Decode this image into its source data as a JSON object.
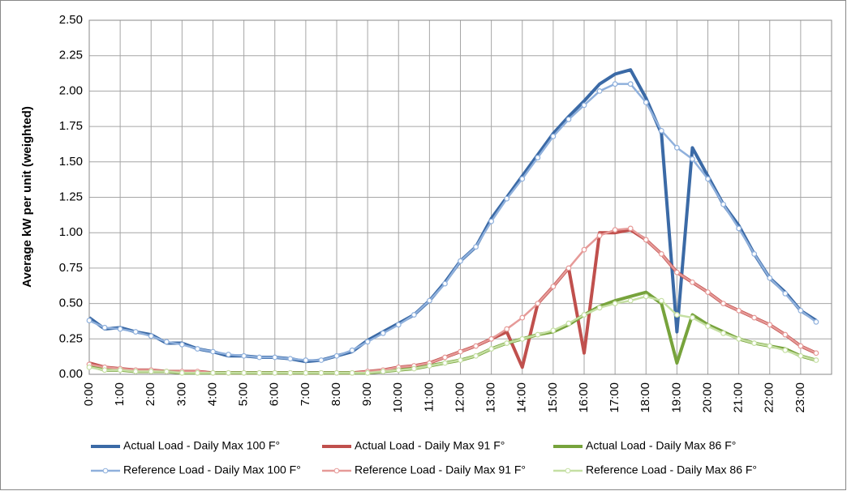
{
  "chart_data": {
    "type": "line",
    "y_label": "Average kW per unit (weighted)",
    "categories": [
      "0:00",
      null,
      "1:00",
      null,
      "2:00",
      null,
      "3:00",
      null,
      "4:00",
      null,
      "5:00",
      null,
      "6:00",
      null,
      "7:00",
      null,
      "8:00",
      null,
      "9:00",
      null,
      "10:00",
      null,
      "11:00",
      null,
      "12:00",
      null,
      "13:00",
      null,
      "14:00",
      null,
      "15:00",
      null,
      "16:00",
      null,
      "17:00",
      null,
      "18:00",
      null,
      "19:00",
      null,
      "20:00",
      null,
      "21:00",
      null,
      "22:00",
      null,
      "23:00",
      null
    ],
    "ylim": [
      0,
      2.5
    ],
    "yticks": [
      {
        "value": 0,
        "label": "0.00"
      },
      {
        "value": 0.25,
        "label": "0.25"
      },
      {
        "value": 0.5,
        "label": "0.50"
      },
      {
        "value": 0.75,
        "label": "0.75"
      },
      {
        "value": 1,
        "label": "1.00"
      },
      {
        "value": 1.25,
        "label": "1.25"
      },
      {
        "value": 1.5,
        "label": "1.50"
      },
      {
        "value": 1.75,
        "label": "1.75"
      },
      {
        "value": 2,
        "label": "2.00"
      },
      {
        "value": 2.25,
        "label": "2.25"
      },
      {
        "value": 2.5,
        "label": "2.50"
      }
    ],
    "grid": true,
    "legend": "bottom",
    "series": [
      {
        "name": "Actual Load - Daily Max 100 F°",
        "color": "#3b6aa6",
        "markers": false,
        "values": [
          0.4,
          0.32,
          0.33,
          0.3,
          0.28,
          0.22,
          0.22,
          0.18,
          0.16,
          0.13,
          0.13,
          0.12,
          0.12,
          0.11,
          0.09,
          0.1,
          0.13,
          0.16,
          0.24,
          0.3,
          0.36,
          0.42,
          0.52,
          0.65,
          0.8,
          0.9,
          1.1,
          1.25,
          1.4,
          1.55,
          1.7,
          1.82,
          1.93,
          2.05,
          2.12,
          2.15,
          1.95,
          1.7,
          0.3,
          1.6,
          1.4,
          1.2,
          1.05,
          0.85,
          0.68,
          0.58,
          0.45,
          0.38
        ]
      },
      {
        "name": "Actual Load - Daily Max 91 F°",
        "color": "#c0504d",
        "markers": false,
        "values": [
          0.08,
          0.05,
          0.04,
          0.03,
          0.03,
          0.02,
          0.02,
          0.02,
          0.01,
          0.01,
          0.01,
          0.01,
          0.01,
          0.01,
          0.01,
          0.01,
          0.01,
          0.01,
          0.02,
          0.03,
          0.05,
          0.06,
          0.08,
          0.12,
          0.16,
          0.2,
          0.25,
          0.3,
          0.05,
          0.5,
          0.62,
          0.75,
          0.15,
          1.0,
          1.0,
          1.02,
          0.95,
          0.85,
          0.72,
          0.65,
          0.58,
          0.5,
          0.45,
          0.4,
          0.35,
          0.28,
          0.2,
          0.15
        ]
      },
      {
        "name": "Actual Load - Daily Max 86 F°",
        "color": "#77a33c",
        "markers": false,
        "values": [
          0.06,
          0.03,
          0.03,
          0.02,
          0.02,
          0.02,
          0.01,
          0.01,
          0.01,
          0.01,
          0.01,
          0.01,
          0.01,
          0.01,
          0.01,
          0.01,
          0.01,
          0.01,
          0.01,
          0.02,
          0.03,
          0.04,
          0.06,
          0.08,
          0.1,
          0.13,
          0.18,
          0.22,
          0.25,
          0.28,
          0.3,
          0.35,
          0.42,
          0.48,
          0.52,
          0.55,
          0.58,
          0.5,
          0.08,
          0.42,
          0.35,
          0.3,
          0.25,
          0.22,
          0.2,
          0.18,
          0.13,
          0.1
        ]
      },
      {
        "name": "Reference Load - Daily Max 100 F°",
        "color": "#8fb0dc",
        "markers": true,
        "values": [
          0.38,
          0.33,
          0.32,
          0.3,
          0.27,
          0.23,
          0.21,
          0.18,
          0.16,
          0.14,
          0.13,
          0.12,
          0.12,
          0.11,
          0.1,
          0.1,
          0.13,
          0.17,
          0.23,
          0.29,
          0.35,
          0.42,
          0.52,
          0.64,
          0.8,
          0.9,
          1.08,
          1.24,
          1.38,
          1.53,
          1.68,
          1.8,
          1.9,
          2.0,
          2.05,
          2.05,
          1.92,
          1.72,
          1.6,
          1.52,
          1.38,
          1.2,
          1.03,
          0.85,
          0.68,
          0.57,
          0.45,
          0.37
        ]
      },
      {
        "name": "Reference Load - Daily Max 91 F°",
        "color": "#e69a98",
        "markers": true,
        "values": [
          0.07,
          0.05,
          0.04,
          0.03,
          0.03,
          0.02,
          0.02,
          0.02,
          0.01,
          0.01,
          0.01,
          0.01,
          0.01,
          0.01,
          0.01,
          0.01,
          0.01,
          0.01,
          0.02,
          0.03,
          0.05,
          0.06,
          0.08,
          0.12,
          0.16,
          0.2,
          0.25,
          0.32,
          0.4,
          0.5,
          0.62,
          0.75,
          0.88,
          0.98,
          1.02,
          1.03,
          0.95,
          0.85,
          0.72,
          0.65,
          0.58,
          0.5,
          0.45,
          0.4,
          0.35,
          0.28,
          0.2,
          0.15
        ]
      },
      {
        "name": "Reference Load - Daily Max 86 F°",
        "color": "#c5dfa3",
        "markers": true,
        "values": [
          0.05,
          0.03,
          0.03,
          0.02,
          0.02,
          0.02,
          0.01,
          0.01,
          0.01,
          0.01,
          0.01,
          0.01,
          0.01,
          0.01,
          0.01,
          0.01,
          0.01,
          0.01,
          0.01,
          0.02,
          0.03,
          0.04,
          0.06,
          0.08,
          0.1,
          0.13,
          0.18,
          0.22,
          0.25,
          0.28,
          0.31,
          0.36,
          0.42,
          0.47,
          0.5,
          0.52,
          0.55,
          0.52,
          0.42,
          0.4,
          0.34,
          0.29,
          0.25,
          0.22,
          0.2,
          0.17,
          0.13,
          0.1
        ]
      }
    ]
  }
}
